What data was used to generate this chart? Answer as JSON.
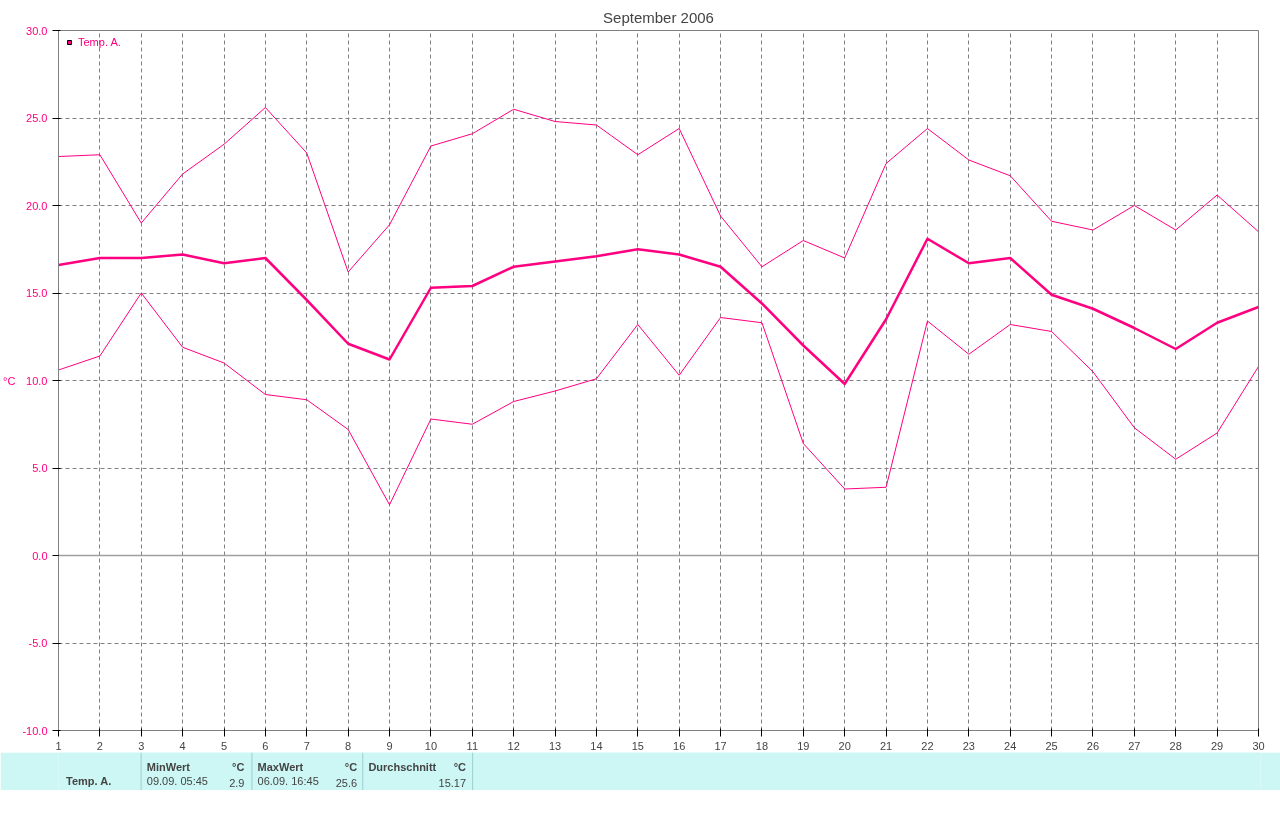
{
  "chart_data": {
    "type": "line",
    "title": "September 2006",
    "ylabel": "°C",
    "x": [
      1,
      2,
      3,
      4,
      5,
      6,
      7,
      8,
      9,
      10,
      11,
      12,
      13,
      14,
      15,
      16,
      17,
      18,
      19,
      20,
      21,
      22,
      23,
      24,
      25,
      26,
      27,
      28,
      29,
      30
    ],
    "series": [
      {
        "color": "#ff0080",
        "values": [
          22.8,
          22.9,
          19.0,
          21.8,
          23.5,
          25.6,
          23.0,
          16.2,
          18.9,
          23.4,
          24.1,
          25.5,
          24.8,
          24.6,
          22.9,
          24.4,
          19.4,
          16.5,
          18.0,
          17.0,
          22.4,
          24.4,
          22.6,
          21.7,
          19.1,
          18.6,
          20.0,
          18.6,
          20.6,
          18.5
        ]
      },
      {
        "name": "Temp. A.",
        "color": "#ff0080",
        "values": [
          16.6,
          17.0,
          17.0,
          17.2,
          16.7,
          17.0,
          14.6,
          12.1,
          11.2,
          15.3,
          15.4,
          16.5,
          16.8,
          17.1,
          17.5,
          17.2,
          16.5,
          14.4,
          12.0,
          9.8,
          13.5,
          18.1,
          16.7,
          17.0,
          14.9,
          14.1,
          13.0,
          11.8,
          13.3,
          14.2
        ]
      },
      {
        "color": "#ff0080",
        "values": [
          10.6,
          11.4,
          15.0,
          11.9,
          11.0,
          9.2,
          8.9,
          7.2,
          2.9,
          7.8,
          7.5,
          8.8,
          9.4,
          10.1,
          13.2,
          10.3,
          13.6,
          13.3,
          6.4,
          3.8,
          3.9,
          13.4,
          11.5,
          13.2,
          12.8,
          10.5,
          7.3,
          5.5,
          7.0,
          10.8
        ]
      }
    ],
    "xlim": [
      1,
      30
    ],
    "ylim": [
      -10,
      30
    ],
    "xticks": [
      1,
      2,
      3,
      4,
      5,
      6,
      7,
      8,
      9,
      10,
      11,
      12,
      13,
      14,
      15,
      16,
      17,
      18,
      19,
      20,
      21,
      22,
      23,
      24,
      25,
      26,
      27,
      28,
      29,
      30
    ],
    "yticks": [
      {
        "value": -10,
        "label": "-10.0"
      },
      {
        "value": -5,
        "label": "-5.0"
      },
      {
        "value": 0,
        "label": "0.0"
      },
      {
        "value": 5,
        "label": "5.0"
      },
      {
        "value": 10,
        "label": "10.0"
      },
      {
        "value": 15,
        "label": "15.0"
      },
      {
        "value": 20,
        "label": "20.0"
      },
      {
        "value": 25,
        "label": "25.0"
      },
      {
        "value": 30,
        "label": "30.0"
      }
    ],
    "ref_lines": [
      {
        "axis": "y",
        "value": 0,
        "color": "#a0a0a0"
      }
    ],
    "grid": true,
    "legend": "top left",
    "marker": "none",
    "line_style": "solid",
    "annotations": [
      "Temp. A.",
      "MinWert",
      "°C",
      "09.09.  05:45",
      "2.9",
      "MaxWert",
      "°C",
      "06.09.  16:45",
      "25.6",
      "Durchschnitt",
      "°C",
      "15.17"
    ]
  }
}
